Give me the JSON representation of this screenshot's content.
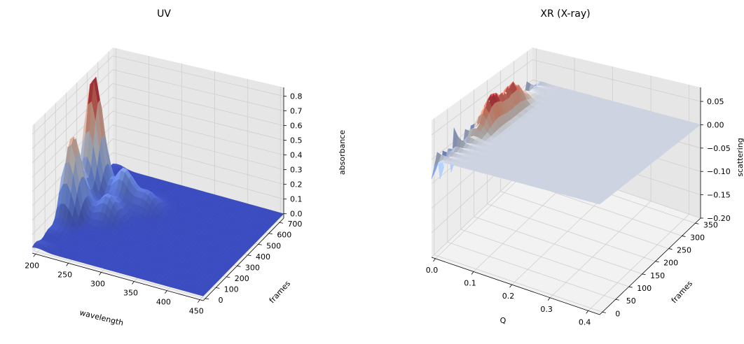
{
  "chart_data": [
    {
      "type": "surface3d",
      "title": "UV",
      "xlabel": "wavelength",
      "ylabel": "frames",
      "zlabel": "absorbance",
      "xlim": [
        195,
        455
      ],
      "ylim": [
        -20,
        740
      ],
      "zlim": [
        -0.03,
        0.86
      ],
      "xticks": [
        "200",
        "250",
        "300",
        "350",
        "400",
        "450"
      ],
      "yticks": [
        "0",
        "100",
        "200",
        "300",
        "400",
        "500",
        "600",
        "700"
      ],
      "zticks": [
        "0.0",
        "0.1",
        "0.2",
        "0.3",
        "0.4",
        "0.5",
        "0.6",
        "0.7",
        "0.8"
      ],
      "colormap": "coolwarm",
      "peaks": [
        {
          "wavelength": 205,
          "frames": 300,
          "absorbance": 0.57
        },
        {
          "wavelength": 205,
          "frames": 500,
          "absorbance": 0.83
        },
        {
          "wavelength": 250,
          "frames": 350,
          "absorbance": 0.17
        },
        {
          "wavelength": 250,
          "frames": 500,
          "absorbance": 0.24
        },
        {
          "wavelength": 285,
          "frames": 500,
          "absorbance": 0.12
        }
      ],
      "grid": true
    },
    {
      "type": "surface3d",
      "title": "XR (X-ray)",
      "xlabel": "Q",
      "ylabel": "frames",
      "zlabel": "scattering",
      "xlim": [
        -0.01,
        0.43
      ],
      "ylim": [
        -10,
        370
      ],
      "zlim": [
        -0.2,
        0.08
      ],
      "xticks": [
        "0.0",
        "0.1",
        "0.2",
        "0.3",
        "0.4"
      ],
      "yticks": [
        "0",
        "50",
        "100",
        "150",
        "200",
        "250",
        "300",
        "350"
      ],
      "zticks": [
        "−0.20",
        "−0.15",
        "−0.10",
        "−0.05",
        "0.00",
        "0.05"
      ],
      "colormap": "coolwarm",
      "peaks": [
        {
          "Q": 0.02,
          "frames": 170,
          "scattering": 0.065
        },
        {
          "Q": 0.02,
          "frames": 250,
          "scattering": 0.055
        }
      ],
      "grid": true
    }
  ]
}
